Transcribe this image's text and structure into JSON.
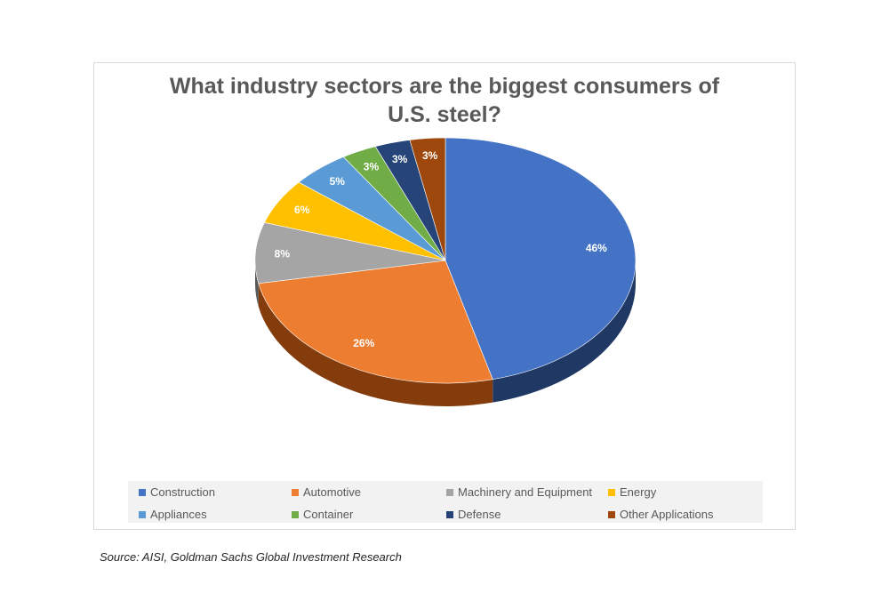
{
  "title": {
    "line1": "What industry sectors are the biggest consumers of",
    "line2": "U.S. steel?"
  },
  "source": "Source: AISI, Goldman Sachs Global Investment Research",
  "chart_data": {
    "type": "pie",
    "title": "What industry sectors are the biggest consumers of U.S. steel?",
    "legend_position": "bottom",
    "slices": [
      {
        "name": "Construction",
        "value": 46,
        "label": "46%",
        "color": "#4472c4",
        "side": "#1f3864",
        "label_color": "#ffffff"
      },
      {
        "name": "Automotive",
        "value": 26,
        "label": "26%",
        "color": "#ed7d31",
        "side": "#843c0c",
        "label_color": "#ffffff"
      },
      {
        "name": "Machinery and Equipment",
        "value": 8,
        "label": "8%",
        "color": "#a5a5a5",
        "side": "#595959",
        "label_color": "#ffffff"
      },
      {
        "name": "Energy",
        "value": 6,
        "label": "6%",
        "color": "#ffc000",
        "side": "#7f6000",
        "label_color": "#ffffff"
      },
      {
        "name": "Appliances",
        "value": 5,
        "label": "5%",
        "color": "#5b9bd5",
        "side": "#1f4e79",
        "label_color": "#ffffff"
      },
      {
        "name": "Container",
        "value": 3,
        "label": "3%",
        "color": "#70ad47",
        "side": "#375623",
        "label_color": "#ffffff"
      },
      {
        "name": "Defense",
        "value": 3,
        "label": "3%",
        "color": "#264478",
        "side": "#0e1a30",
        "label_color": "#ffffff"
      },
      {
        "name": "Other Applications",
        "value": 3,
        "label": "3%",
        "color": "#9e480e",
        "side": "#4a2106",
        "label_color": "#ffffff"
      }
    ]
  }
}
